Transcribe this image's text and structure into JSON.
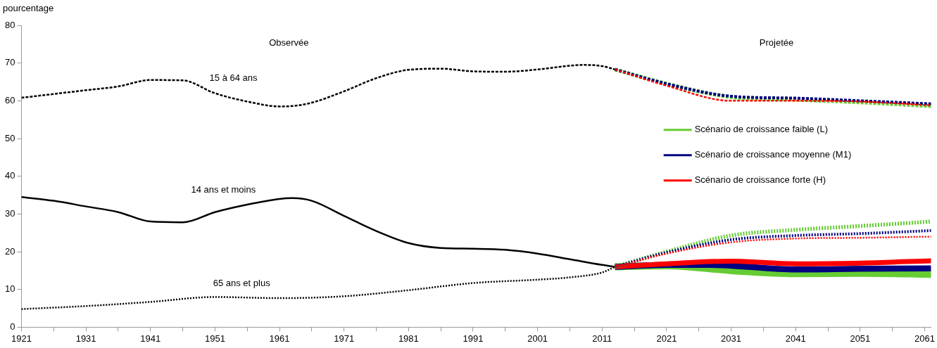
{
  "chart_data": {
    "type": "line",
    "ylabel": "pourcentage",
    "xlim": [
      1921,
      2062
    ],
    "xticks": [
      1921,
      {
        "value": 1926,
        "label": null
      },
      1931,
      {
        "value": 1936,
        "label": null
      },
      1941,
      {
        "value": 1946,
        "label": null
      },
      1951,
      {
        "value": 1956,
        "label": null
      },
      1961,
      {
        "value": 1966,
        "label": null
      },
      1971,
      {
        "value": 1976,
        "label": null
      },
      1981,
      {
        "value": 1986,
        "label": null
      },
      1991,
      {
        "value": 1996,
        "label": null
      },
      2001,
      {
        "value": 2006,
        "label": null
      },
      2011,
      {
        "value": 2016,
        "label": null
      },
      2021,
      {
        "value": 2026,
        "label": null
      },
      2031,
      {
        "value": 2036,
        "label": null
      },
      2041,
      {
        "value": 2046,
        "label": null
      },
      2051,
      {
        "value": 2056,
        "label": null
      },
      2061
    ],
    "ylim": [
      0,
      80
    ],
    "yticks": [
      0,
      10,
      20,
      30,
      40,
      50,
      60,
      70,
      80
    ],
    "grid": false,
    "legend": "right",
    "marker": "none",
    "series": [
      {
        "color": "#000000",
        "line_style": "solid",
        "x": [
          1921,
          1926,
          1931,
          1936,
          1941,
          1946,
          1951,
          1956,
          1961,
          1963,
          1966,
          1971,
          1976,
          1981,
          1986,
          1991,
          1996,
          2001,
          2006,
          2011,
          2013
        ],
        "values": [
          34.5,
          33.5,
          32,
          30.5,
          28,
          27.8,
          30.5,
          32.5,
          34,
          34.2,
          33.5,
          29.5,
          25.5,
          22.3,
          21,
          20.8,
          20.5,
          19.5,
          18,
          16.5,
          16
        ]
      },
      {
        "color": "#000000",
        "line_style": "dashed",
        "x": [
          1921,
          1926,
          1931,
          1936,
          1941,
          1946,
          1951,
          1956,
          1961,
          1963,
          1966,
          1971,
          1976,
          1981,
          1986,
          1991,
          1996,
          2001,
          2006,
          2008,
          2011,
          2013
        ],
        "values": [
          60.8,
          61.8,
          62.8,
          63.8,
          65.5,
          65.4,
          62,
          59.8,
          58.5,
          58.6,
          59.5,
          62.5,
          66,
          68.2,
          68.5,
          67.8,
          67.7,
          68.3,
          69.3,
          69.5,
          69.2,
          68.3
        ]
      },
      {
        "color": "#000000",
        "line_style": "dotted",
        "x": [
          1921,
          1931,
          1941,
          1951,
          1961,
          1971,
          1981,
          1991,
          2001,
          2006,
          2011,
          2013
        ],
        "values": [
          4.8,
          5.6,
          6.7,
          8,
          7.7,
          8.2,
          9.8,
          11.7,
          12.6,
          13.2,
          14.5,
          16
        ]
      },
      {
        "name": "Scénario de croissance faible (L)",
        "color": "#66cc33",
        "line_style": "solid",
        "x": [
          2013,
          2021,
          2031,
          2041,
          2051,
          2062
        ],
        "values": [
          16,
          16.3,
          15,
          14.2,
          14.3,
          14
        ]
      },
      {
        "name": "Scénario de croissance moyenne (M1)",
        "color": "#000080",
        "line_style": "solid",
        "x": [
          2013,
          2021,
          2028,
          2041,
          2051,
          2062
        ],
        "values": [
          16,
          16.5,
          16.5,
          15.3,
          15.5,
          15.6
        ]
      },
      {
        "name": "Scénario de croissance forte (H)",
        "color": "#ff0000",
        "line_style": "solid",
        "x": [
          2013,
          2021,
          2031,
          2041,
          2051,
          2062
        ],
        "values": [
          16,
          16.8,
          17.5,
          16.8,
          17,
          17.6
        ]
      },
      {
        "color": "#66cc33",
        "line_style": "dashed",
        "x": [
          2013,
          2021,
          2031,
          2041,
          2051,
          2062
        ],
        "values": [
          68.3,
          64.5,
          61,
          60.3,
          59.6,
          58.6
        ]
      },
      {
        "color": "#000080",
        "line_style": "dashed",
        "x": [
          2013,
          2021,
          2031,
          2041,
          2051,
          2062
        ],
        "values": [
          68.3,
          64.5,
          61.2,
          60.7,
          60,
          59.2
        ]
      },
      {
        "color": "#ff0000",
        "line_style": "dashed",
        "x": [
          2013,
          2021,
          2031,
          2041,
          2051,
          2062
        ],
        "values": [
          68.3,
          64,
          60,
          60,
          59.8,
          58.8
        ]
      },
      {
        "color": "#66cc33",
        "line_style": "dotted",
        "x": [
          2013,
          2021,
          2031,
          2041,
          2051,
          2062
        ],
        "values": [
          16,
          20,
          24.3,
          25.8,
          26.8,
          28
        ]
      },
      {
        "color": "#000080",
        "line_style": "dotted",
        "x": [
          2013,
          2021,
          2031,
          2041,
          2051,
          2062
        ],
        "values": [
          16,
          19.8,
          23.2,
          24.3,
          24.8,
          25.6
        ]
      },
      {
        "color": "#ff0000",
        "line_style": "dotted",
        "x": [
          2013,
          2021,
          2031,
          2041,
          2051,
          2062
        ],
        "values": [
          16,
          19.5,
          22.5,
          23.5,
          23.7,
          24
        ]
      }
    ],
    "annotations": [
      "Observée",
      "Projetée",
      "15 à 64 ans",
      "14 ans et moins",
      "65 ans et plus"
    ]
  }
}
